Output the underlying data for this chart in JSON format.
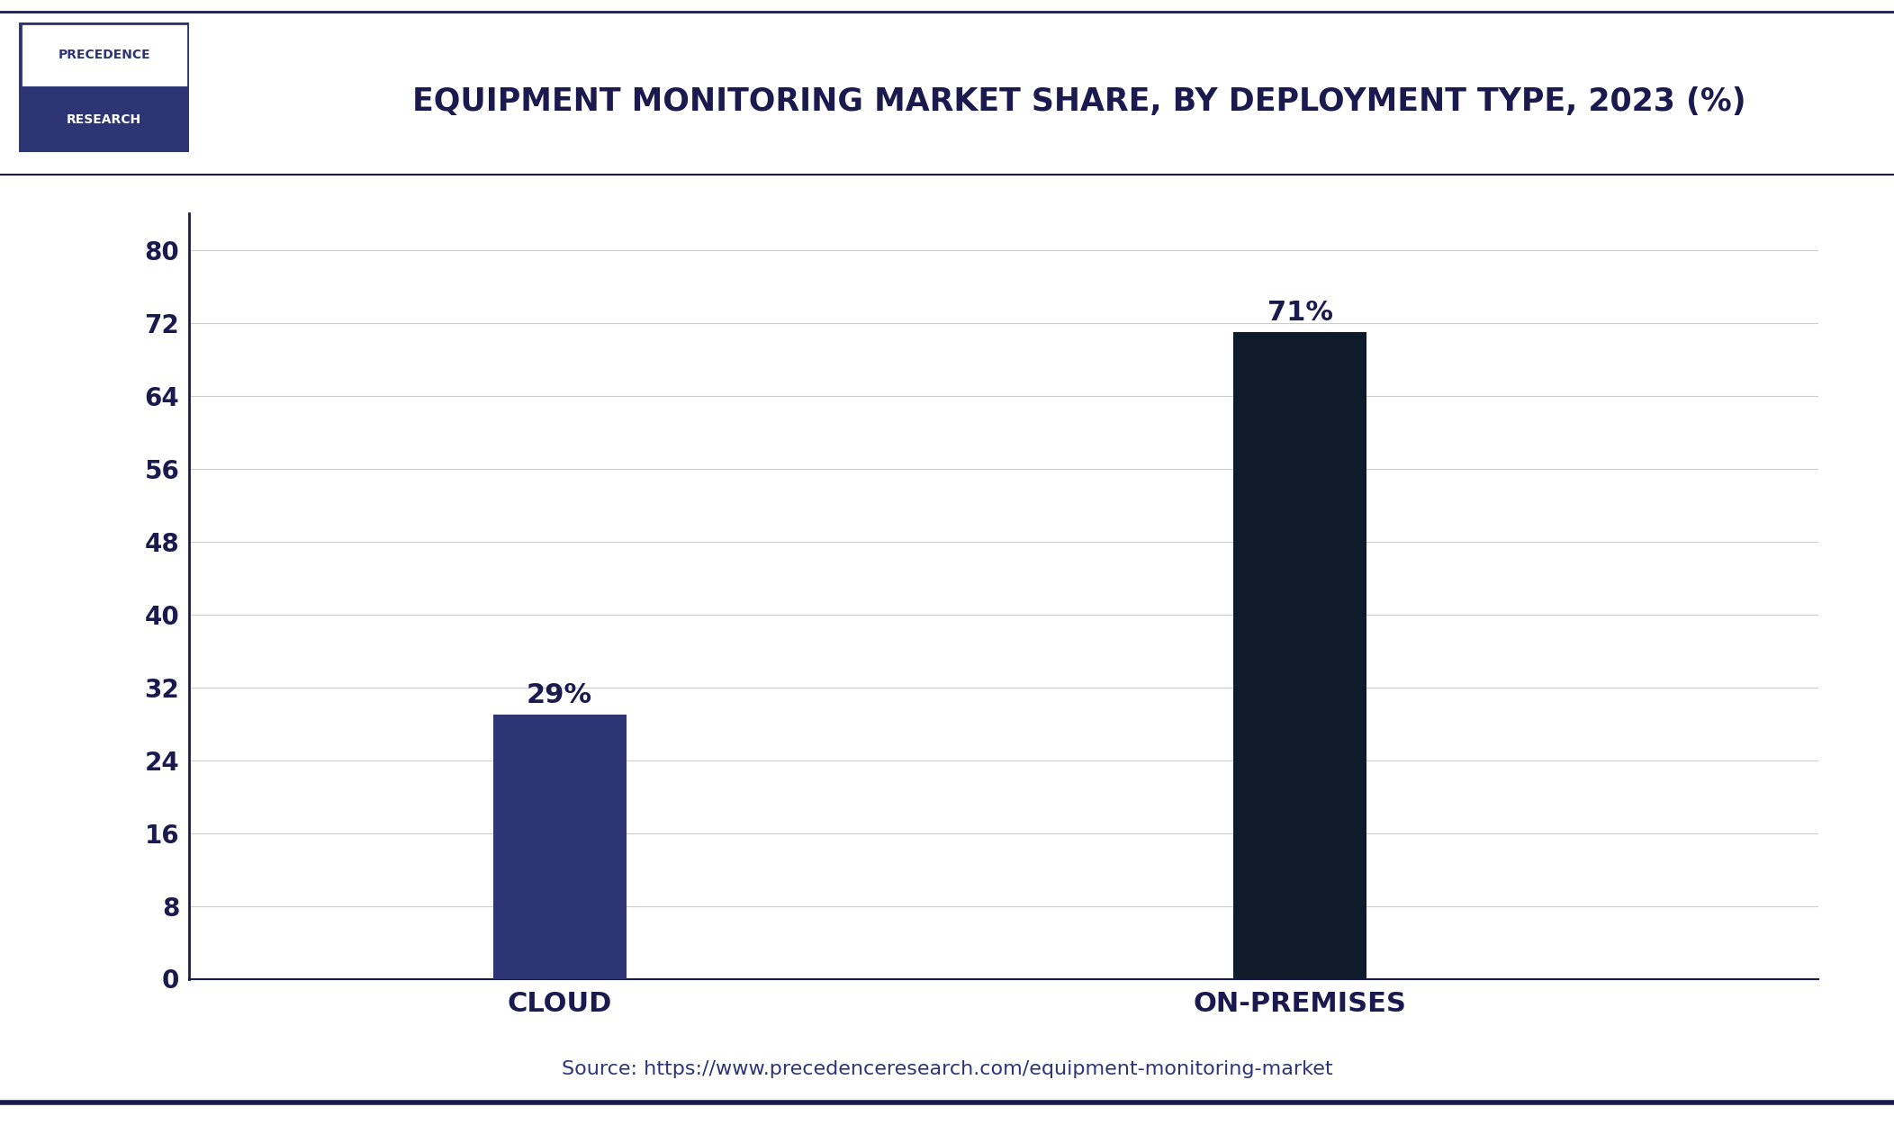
{
  "title": "EQUIPMENT MONITORING MARKET SHARE, BY DEPLOYMENT TYPE, 2023 (%)",
  "categories": [
    "CLOUD",
    "ON-PREMISES"
  ],
  "values": [
    29,
    71
  ],
  "bar_colors": [
    "#2e3575",
    "#0d1b2a"
  ],
  "value_labels": [
    "29%",
    "71%"
  ],
  "yticks": [
    0,
    8,
    16,
    24,
    32,
    40,
    48,
    56,
    64,
    72,
    80
  ],
  "ylim": [
    0,
    84
  ],
  "background_color": "#ffffff",
  "title_color": "#1a1a4e",
  "axis_color": "#1a1a4e",
  "tick_color": "#1a1a4e",
  "grid_color": "#cccccc",
  "source_text": "Source: https://www.precedenceresearch.com/equipment-monitoring-market",
  "source_color": "#2e3575",
  "logo_top_text": "PRECEDENCE",
  "logo_bottom_text": "RESEARCH",
  "logo_border_color": "#2e3575",
  "logo_bg_color": "#2e3575",
  "logo_text_color_top": "#2e3575",
  "logo_text_color_bottom": "#ffffff",
  "header_line_color": "#1a1a4e",
  "bottom_line_color": "#1a1a4e",
  "bar_width": 0.18,
  "x_positions": [
    1,
    2
  ],
  "xlim": [
    0.5,
    2.7
  ]
}
